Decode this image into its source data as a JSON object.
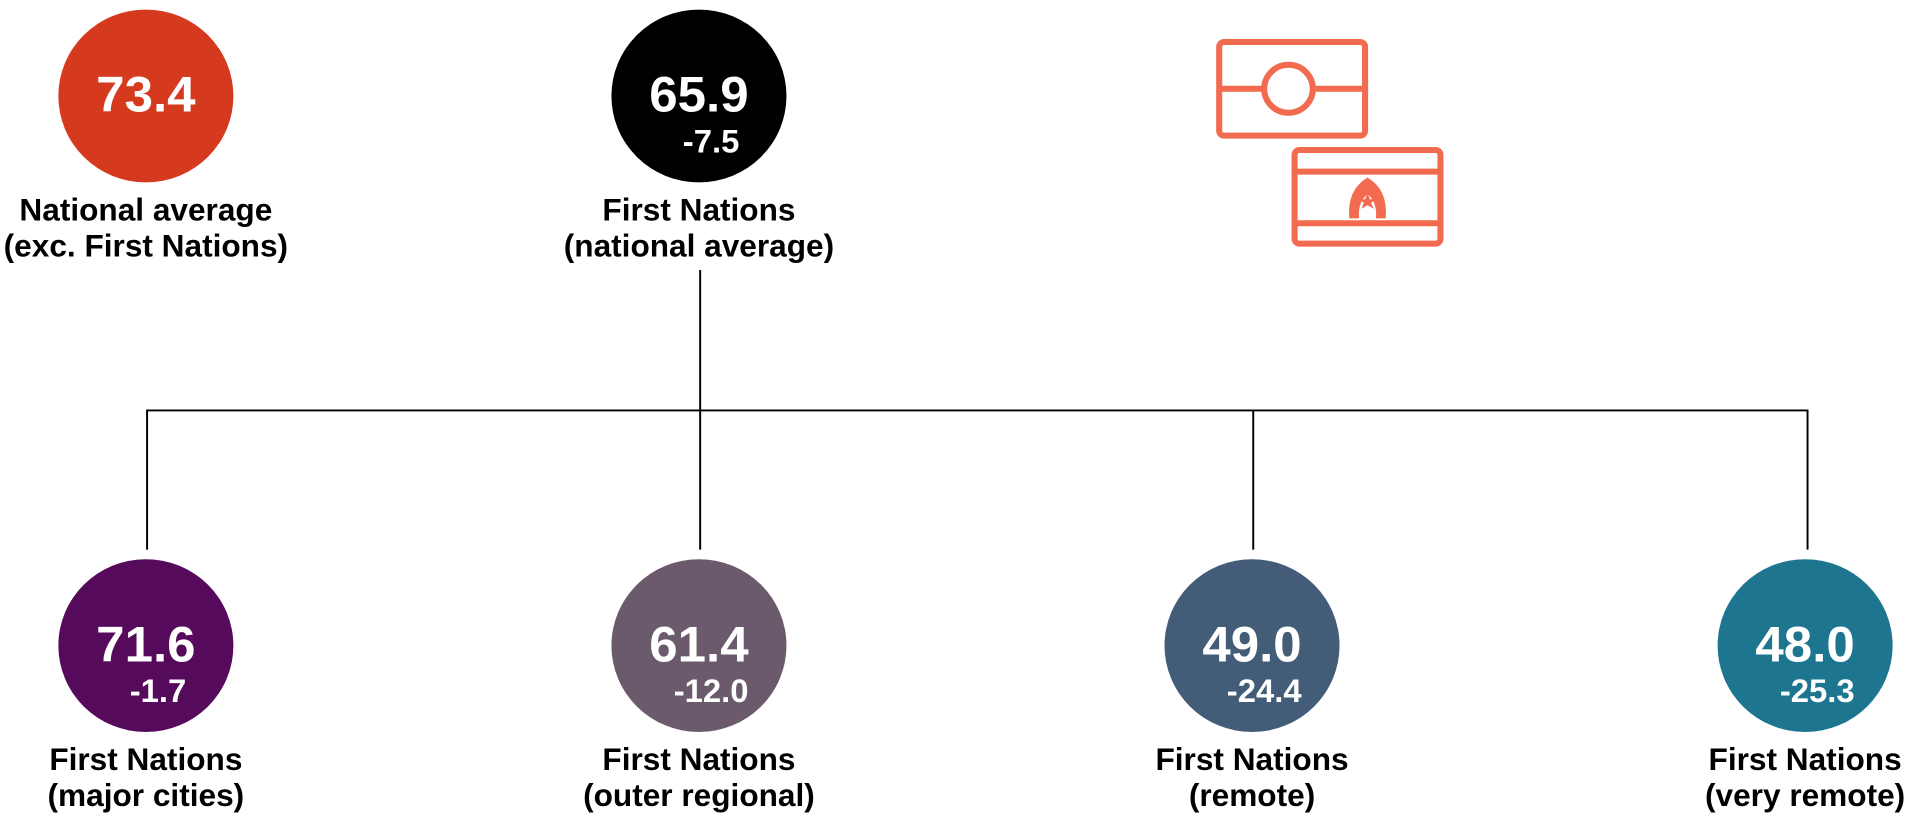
{
  "nodes": [
    {
      "value": "73.4",
      "label": [
        "National average",
        "(exc. First Nations)"
      ],
      "color": "#d63a1e"
    },
    {
      "value": "65.9",
      "diff": "-7.5",
      "label": [
        "First Nations",
        "(national average)"
      ],
      "color": "#000000"
    },
    {
      "value": "71.6",
      "diff": "-1.7",
      "label": [
        "First Nations",
        "(major cities)"
      ],
      "color": "#560a5c"
    },
    {
      "value": "61.4",
      "diff": "-12.0",
      "label": [
        "First Nations",
        "(outer regional)"
      ],
      "color": "#6b5a6b"
    },
    {
      "value": "49.0",
      "diff": "-24.4",
      "label": [
        "First Nations",
        "(remote)"
      ],
      "color": "#435c78"
    },
    {
      "value": "48.0",
      "diff": "-25.3",
      "label": [
        "First Nations",
        "(very remote)"
      ],
      "color": "#1e7590"
    }
  ]
}
